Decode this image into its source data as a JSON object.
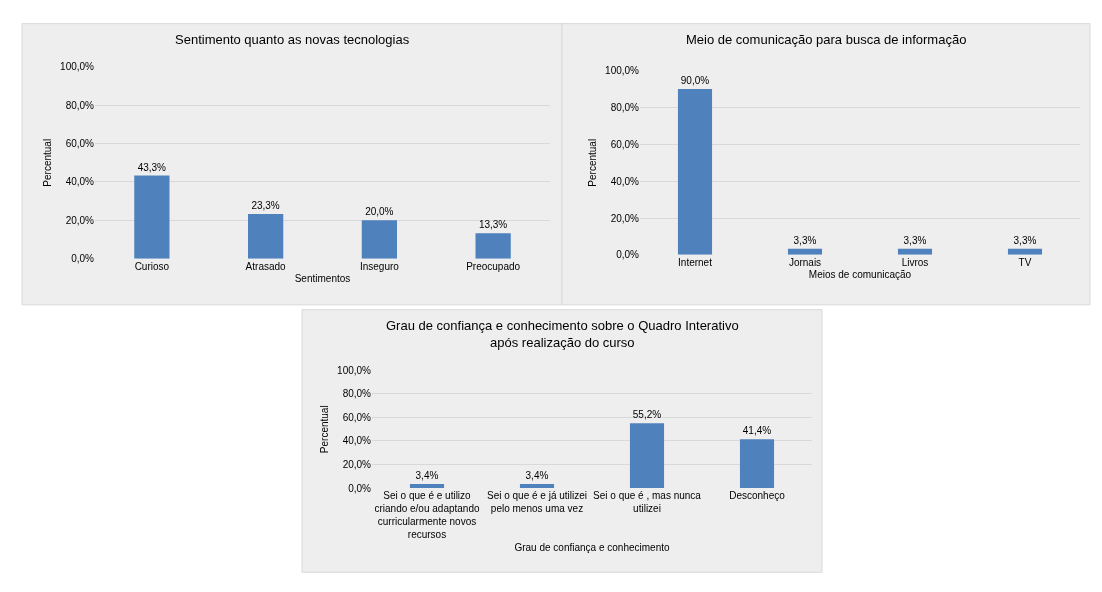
{
  "chart_data": [
    {
      "type": "bar",
      "title": "Sentimento quanto as novas tecnologias",
      "xlabel": "Sentimentos",
      "ylabel": "Percentual",
      "categories": [
        "Curioso",
        "Atrasado",
        "Inseguro",
        "Preocupado"
      ],
      "values": [
        43.3,
        23.3,
        20.0,
        13.3
      ],
      "value_labels": [
        "43,3%",
        "23,3%",
        "20,0%",
        "13,3%"
      ],
      "color": "#4f81bd",
      "ylim": [
        0,
        100
      ],
      "yticks": [
        {
          "value": 0,
          "label": "0,0%"
        },
        {
          "value": 20,
          "label": "20,0%"
        },
        {
          "value": 40,
          "label": "40,0%"
        },
        {
          "value": 60,
          "label": "60,0%"
        },
        {
          "value": 80,
          "label": "80,0%"
        },
        {
          "value": 100,
          "label": "100,0%"
        }
      ],
      "grid": "y"
    },
    {
      "type": "bar",
      "title": "Meio de comunicação para busca de informação",
      "xlabel": "Meios de comunicação",
      "ylabel": "Percentual",
      "categories": [
        "Internet",
        "Jornais",
        "Livros",
        "TV"
      ],
      "values": [
        90.0,
        3.3,
        3.3,
        3.3
      ],
      "value_labels": [
        "90,0%",
        "3,3%",
        "3,3%",
        "3,3%"
      ],
      "color": "#4f81bd",
      "ylim": [
        0,
        100
      ],
      "yticks": [
        {
          "value": 0,
          "label": "0,0%"
        },
        {
          "value": 20,
          "label": "20,0%"
        },
        {
          "value": 40,
          "label": "40,0%"
        },
        {
          "value": 60,
          "label": "60,0%"
        },
        {
          "value": 80,
          "label": "80,0%"
        },
        {
          "value": 100,
          "label": "100,0%"
        }
      ],
      "grid": "y"
    },
    {
      "type": "bar",
      "title": "Grau de confiança e conhecimento sobre o Quadro Interativo após realização do curso",
      "xlabel": "Grau de confiança e conhecimento",
      "ylabel": "Percentual",
      "categories": [
        "Sei o que é e utilizo criando e/ou adaptando curricularmente novos recursos",
        "Sei o que é e já utilizei pelo menos uma vez",
        "Sei o que é , mas nunca utilizei",
        "Desconheço"
      ],
      "values": [
        3.4,
        3.4,
        55.2,
        41.4
      ],
      "value_labels": [
        "3,4%",
        "3,4%",
        "55,2%",
        "41,4%"
      ],
      "color": "#4f81bd",
      "ylim": [
        0,
        100
      ],
      "yticks": [
        {
          "value": 0,
          "label": "0,0%"
        },
        {
          "value": 20,
          "label": "20,0%"
        },
        {
          "value": 40,
          "label": "40,0%"
        },
        {
          "value": 60,
          "label": "60,0%"
        },
        {
          "value": 80,
          "label": "80,0%"
        },
        {
          "value": 100,
          "label": "100,0%"
        }
      ],
      "grid": "y"
    }
  ]
}
